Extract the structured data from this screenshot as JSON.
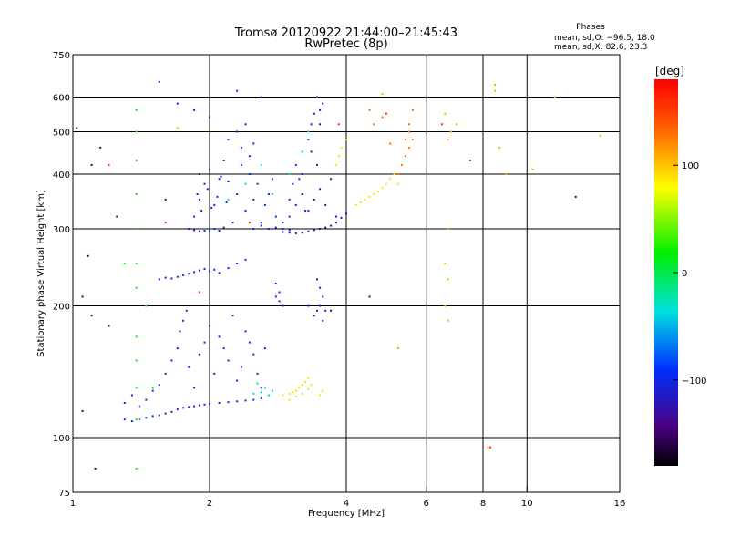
{
  "chart_data": {
    "type": "scatter",
    "title": "Tromsø 20120922 21:44:00–21:45:43",
    "subtitle": "RwPretec (8p)",
    "xlabel": "Frequency [MHz]",
    "ylabel": "Stationary phase Virtual Height [km]",
    "x_scale": "log",
    "y_scale": "log",
    "xlim": [
      1,
      16
    ],
    "ylim": [
      75,
      750
    ],
    "x_ticks": [
      1,
      2,
      4,
      6,
      8,
      10,
      16
    ],
    "x_tick_labels": [
      "1",
      "2",
      "4",
      "6",
      "8",
      "10",
      "16"
    ],
    "y_ticks": [
      75,
      100,
      200,
      300,
      400,
      500,
      600,
      750
    ],
    "y_tick_labels": [
      "75",
      "100",
      "200",
      "300",
      "400",
      "500",
      "600",
      "750"
    ],
    "x_grid": [
      2,
      4,
      6,
      8,
      10
    ],
    "y_grid": [
      100,
      200,
      300,
      400,
      500,
      600
    ],
    "phase_info": {
      "heading": "Phases",
      "line1": "mean, sd,O: −96.5, 18.0",
      "line2": "mean, sd,X:  82.6, 23.3"
    },
    "colorbar": {
      "label": "[deg]",
      "vmin": -180,
      "vmax": 180,
      "ticks": [
        100,
        0,
        -100
      ],
      "tick_labels": [
        "100",
        "0",
        "−100"
      ]
    },
    "series": [
      {
        "points": [
          [
            1.3,
            110
          ],
          [
            1.35,
            109
          ],
          [
            1.4,
            110
          ],
          [
            1.45,
            111
          ],
          [
            1.5,
            112
          ],
          [
            1.55,
            112.5
          ],
          [
            1.6,
            113.5
          ],
          [
            1.65,
            114.5
          ],
          [
            1.7,
            116
          ],
          [
            1.75,
            117
          ],
          [
            1.8,
            117.5
          ],
          [
            1.85,
            118
          ],
          [
            1.9,
            118.5
          ],
          [
            1.95,
            119
          ],
          [
            2.0,
            119.5
          ],
          [
            2.1,
            120
          ],
          [
            2.2,
            120.5
          ],
          [
            2.3,
            121
          ],
          [
            2.4,
            121.5
          ],
          [
            2.5,
            122
          ],
          [
            2.6,
            123
          ],
          [
            1.3,
            120
          ],
          [
            1.35,
            125
          ],
          [
            1.4,
            118
          ],
          [
            1.45,
            122
          ],
          [
            1.5,
            128
          ],
          [
            1.55,
            132
          ],
          [
            1.6,
            140
          ],
          [
            1.65,
            150
          ],
          [
            1.7,
            160
          ],
          [
            1.72,
            175
          ],
          [
            1.75,
            185
          ],
          [
            1.78,
            195
          ],
          [
            1.8,
            145
          ],
          [
            1.85,
            130
          ],
          [
            1.9,
            155
          ],
          [
            1.95,
            165
          ],
          [
            2.0,
            180
          ],
          [
            2.05,
            140
          ],
          [
            2.1,
            170
          ],
          [
            2.15,
            160
          ],
          [
            2.2,
            150
          ],
          [
            2.25,
            190
          ],
          [
            2.3,
            135
          ],
          [
            2.35,
            145
          ],
          [
            2.4,
            175
          ],
          [
            2.45,
            165
          ],
          [
            2.5,
            155
          ],
          [
            2.55,
            140
          ],
          [
            2.6,
            130
          ],
          [
            2.65,
            160
          ],
          [
            1.55,
            230
          ],
          [
            1.6,
            232
          ],
          [
            1.65,
            231
          ],
          [
            1.7,
            233
          ],
          [
            1.75,
            235
          ],
          [
            1.8,
            237
          ],
          [
            1.85,
            239
          ],
          [
            1.9,
            241
          ],
          [
            1.95,
            243
          ],
          [
            2.0,
            240
          ],
          [
            2.05,
            242
          ],
          [
            2.1,
            238
          ],
          [
            2.2,
            244
          ],
          [
            2.3,
            250
          ],
          [
            2.4,
            255
          ],
          [
            1.8,
            300
          ],
          [
            1.85,
            298
          ],
          [
            1.9,
            296
          ],
          [
            1.95,
            297
          ],
          [
            2.0,
            296
          ],
          [
            2.05,
            300
          ],
          [
            2.1,
            297
          ],
          [
            2.15,
            302
          ],
          [
            1.85,
            320
          ],
          [
            1.9,
            350
          ],
          [
            1.95,
            380
          ],
          [
            2.0,
            410
          ],
          [
            2.05,
            340
          ],
          [
            2.1,
            390
          ],
          [
            1.88,
            360
          ],
          [
            1.92,
            330
          ],
          [
            1.98,
            370
          ],
          [
            2.02,
            335
          ],
          [
            2.08,
            355
          ],
          [
            2.12,
            395
          ],
          [
            2.15,
            430
          ],
          [
            2.18,
            345
          ],
          [
            2.2,
            385
          ],
          [
            2.25,
            310
          ],
          [
            2.3,
            360
          ],
          [
            2.35,
            420
          ],
          [
            2.4,
            330
          ],
          [
            2.45,
            400
          ],
          [
            2.5,
            350
          ],
          [
            2.55,
            380
          ],
          [
            2.6,
            310
          ],
          [
            2.65,
            340
          ],
          [
            2.7,
            360
          ],
          [
            2.75,
            390
          ],
          [
            2.8,
            320
          ],
          [
            2.2,
            480
          ],
          [
            2.3,
            500
          ],
          [
            2.4,
            520
          ],
          [
            2.5,
            470
          ],
          [
            2.45,
            440
          ],
          [
            2.35,
            460
          ],
          [
            2.5,
            300
          ],
          [
            2.6,
            305
          ],
          [
            2.7,
            300
          ],
          [
            2.8,
            302
          ],
          [
            2.9,
            300
          ],
          [
            3.0,
            298
          ],
          [
            2.9,
            310
          ],
          [
            3.0,
            350
          ],
          [
            3.05,
            380
          ],
          [
            3.1,
            420
          ],
          [
            3.2,
            360
          ],
          [
            3.3,
            480
          ],
          [
            3.35,
            520
          ],
          [
            3.4,
            550
          ],
          [
            3.45,
            600
          ],
          [
            3.5,
            560
          ],
          [
            3.25,
            330
          ],
          [
            3.15,
            390
          ],
          [
            3.45,
            230
          ],
          [
            3.5,
            220
          ],
          [
            3.55,
            210
          ],
          [
            3.5,
            200
          ],
          [
            3.45,
            195
          ],
          [
            3.55,
            185
          ],
          [
            2.8,
            210
          ],
          [
            2.85,
            205
          ],
          [
            2.9,
            200
          ],
          [
            2.8,
            225
          ],
          [
            2.85,
            215
          ],
          [
            1.55,
            650
          ],
          [
            1.7,
            580
          ],
          [
            1.85,
            560
          ],
          [
            2.0,
            540
          ],
          [
            2.3,
            620
          ],
          [
            2.6,
            600
          ]
        ],
        "phase": -100
      },
      {
        "points": [
          [
            2.9,
            295
          ],
          [
            3.0,
            294
          ],
          [
            3.1,
            293
          ],
          [
            3.2,
            294
          ],
          [
            3.3,
            296
          ],
          [
            3.4,
            298
          ],
          [
            3.5,
            300
          ],
          [
            3.6,
            302
          ],
          [
            3.7,
            305
          ],
          [
            3.8,
            310
          ],
          [
            3.9,
            318
          ],
          [
            4.0,
            325
          ],
          [
            3.0,
            320
          ],
          [
            3.1,
            340
          ],
          [
            3.2,
            360
          ],
          [
            3.3,
            330
          ],
          [
            3.4,
            350
          ],
          [
            3.5,
            370
          ],
          [
            3.6,
            340
          ],
          [
            3.7,
            390
          ],
          [
            3.8,
            320
          ],
          [
            3.2,
            400
          ],
          [
            3.35,
            450
          ],
          [
            3.5,
            520
          ],
          [
            3.55,
            580
          ],
          [
            3.45,
            420
          ],
          [
            3.3,
            200
          ],
          [
            3.4,
            190
          ],
          [
            3.6,
            195
          ]
        ],
        "phase": -120
      },
      {
        "points": [
          [
            2.5,
            126
          ],
          [
            2.6,
            127
          ],
          [
            2.65,
            130
          ],
          [
            2.7,
            125
          ],
          [
            2.55,
            133
          ],
          [
            2.75,
            128
          ],
          [
            2.2,
            350
          ],
          [
            2.4,
            380
          ],
          [
            2.6,
            420
          ],
          [
            2.75,
            360
          ],
          [
            3.0,
            400
          ],
          [
            3.2,
            450
          ],
          [
            3.3,
            500
          ]
        ],
        "phase": -40
      },
      {
        "points": [
          [
            2.9,
            125
          ],
          [
            3.0,
            126
          ],
          [
            3.05,
            127
          ],
          [
            3.1,
            128
          ],
          [
            3.15,
            130
          ],
          [
            3.2,
            132
          ],
          [
            3.25,
            134
          ],
          [
            3.3,
            137
          ],
          [
            3.35,
            132
          ],
          [
            3.0,
            122
          ],
          [
            3.1,
            124
          ],
          [
            3.2,
            126
          ],
          [
            3.3,
            129
          ],
          [
            3.5,
            125
          ],
          [
            3.55,
            128
          ],
          [
            4.2,
            340
          ],
          [
            4.3,
            345
          ],
          [
            4.4,
            350
          ],
          [
            4.5,
            355
          ],
          [
            4.6,
            360
          ],
          [
            4.7,
            365
          ],
          [
            4.8,
            372
          ],
          [
            4.9,
            380
          ],
          [
            5.0,
            390
          ],
          [
            5.1,
            400
          ],
          [
            5.2,
            380
          ],
          [
            3.8,
            420
          ],
          [
            3.9,
            460
          ],
          [
            4.0,
            480
          ],
          [
            3.85,
            440
          ]
        ],
        "phase": 90
      },
      {
        "points": [
          [
            5.2,
            400
          ],
          [
            5.3,
            420
          ],
          [
            5.4,
            440
          ],
          [
            5.5,
            460
          ],
          [
            5.6,
            480
          ],
          [
            5.5,
            520
          ],
          [
            5.6,
            560
          ],
          [
            5.5,
            500
          ],
          [
            5.4,
            480
          ],
          [
            4.6,
            520
          ],
          [
            4.8,
            540
          ],
          [
            5.0,
            470
          ],
          [
            4.5,
            560
          ]
        ],
        "phase": 130
      },
      {
        "points": [
          [
            1.38,
            500
          ],
          [
            1.38,
            430
          ],
          [
            1.38,
            360
          ],
          [
            1.38,
            300
          ],
          [
            1.38,
            250
          ],
          [
            1.38,
            220
          ],
          [
            1.38,
            170
          ],
          [
            1.38,
            150
          ],
          [
            1.38,
            130
          ],
          [
            1.38,
            110
          ],
          [
            1.38,
            85
          ],
          [
            1.38,
            560
          ],
          [
            1.3,
            250
          ],
          [
            1.45,
            200
          ],
          [
            1.5,
            130
          ]
        ],
        "phase": 20
      },
      {
        "points": [
          [
            6.6,
            550
          ],
          [
            6.7,
            480
          ],
          [
            6.6,
            250
          ],
          [
            6.7,
            230
          ],
          [
            6.6,
            200
          ],
          [
            6.7,
            185
          ],
          [
            6.8,
            500
          ],
          [
            6.7,
            300
          ],
          [
            8.5,
            620
          ],
          [
            8.5,
            640
          ],
          [
            8.7,
            460
          ],
          [
            9.0,
            400
          ],
          [
            10.3,
            410
          ],
          [
            11.5,
            600
          ],
          [
            14.5,
            490
          ],
          [
            8.2,
            95
          ],
          [
            7.0,
            520
          ],
          [
            5.2,
            160
          ],
          [
            1.7,
            510
          ],
          [
            4.8,
            610
          ]
        ],
        "phase": 110
      },
      {
        "points": [
          [
            1.05,
            210
          ],
          [
            1.08,
            260
          ],
          [
            1.1,
            420
          ],
          [
            1.15,
            460
          ],
          [
            1.25,
            320
          ],
          [
            1.2,
            180
          ],
          [
            1.1,
            190
          ],
          [
            1.12,
            85
          ],
          [
            1.02,
            510
          ],
          [
            1.05,
            115
          ],
          [
            1.6,
            350
          ],
          [
            1.9,
            400
          ],
          [
            12.8,
            355
          ],
          [
            3.7,
            195
          ],
          [
            4.5,
            210
          ]
        ],
        "phase": -150
      },
      {
        "points": [
          [
            1.2,
            420
          ],
          [
            1.6,
            310
          ],
          [
            2.45,
            310
          ],
          [
            3.85,
            520
          ],
          [
            4.9,
            550
          ],
          [
            6.5,
            520
          ],
          [
            7.5,
            430
          ],
          [
            1.9,
            215
          ],
          [
            8.3,
            95
          ]
        ],
        "phase": 160
      }
    ]
  }
}
